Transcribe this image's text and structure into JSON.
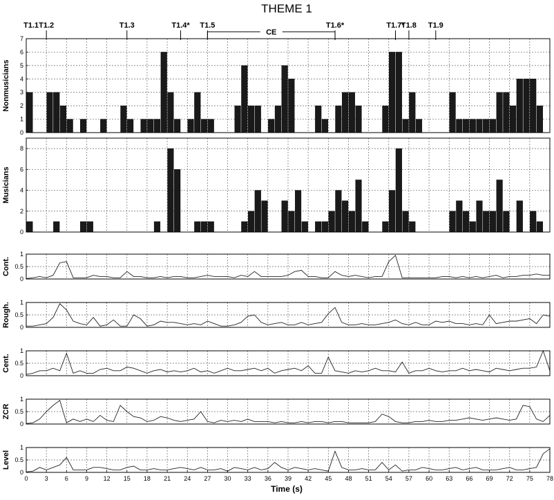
{
  "figure": {
    "title": "THEME 1",
    "xlabel": "Time (s)",
    "xticks": [
      0,
      3,
      6,
      9,
      12,
      15,
      18,
      21,
      24,
      27,
      30,
      33,
      36,
      39,
      42,
      45,
      48,
      51,
      54,
      57,
      60,
      63,
      66,
      69,
      72,
      75,
      78
    ],
    "markers": [
      {
        "label": "T1.1",
        "time": 0
      },
      {
        "label": "T1.2",
        "time": 3
      },
      {
        "label": "T1.3",
        "time": 15
      },
      {
        "label": "T1.4*",
        "time": 23
      },
      {
        "label": "T1.5",
        "time": 27
      },
      {
        "label": "T1.6*",
        "time": 46
      },
      {
        "label": "T1.7*",
        "time": 55
      },
      {
        "label": "T1.8",
        "time": 57
      },
      {
        "label": "T1.9",
        "time": 61
      }
    ],
    "ce_span": {
      "label": "CE",
      "start": 27,
      "end": 46
    }
  },
  "chart_data": [
    {
      "type": "bar",
      "ylabel": "Nonmusicians",
      "ylim": [
        0,
        7
      ],
      "yticks": [
        0,
        1,
        2,
        3,
        4,
        5,
        6,
        7
      ],
      "grid": true,
      "x": [
        0,
        1,
        2,
        3,
        4,
        5,
        6,
        7,
        8,
        9,
        10,
        11,
        12,
        13,
        14,
        15,
        16,
        17,
        18,
        19,
        20,
        21,
        22,
        23,
        24,
        25,
        26,
        27,
        28,
        29,
        30,
        31,
        32,
        33,
        34,
        35,
        36,
        37,
        38,
        39,
        40,
        41,
        42,
        43,
        44,
        45,
        46,
        47,
        48,
        49,
        50,
        51,
        52,
        53,
        54,
        55,
        56,
        57,
        58,
        59,
        60,
        61,
        62,
        63,
        64,
        65,
        66,
        67,
        68,
        69,
        70,
        71,
        72,
        73,
        74,
        75,
        76,
        77
      ],
      "values": [
        3,
        0,
        0,
        3,
        3,
        2,
        1,
        0,
        1,
        0,
        0,
        1,
        0,
        0,
        2,
        1,
        0,
        1,
        1,
        1,
        6,
        3,
        1,
        0,
        1,
        3,
        1,
        1,
        0,
        0,
        0,
        2,
        5,
        2,
        2,
        0,
        1,
        2,
        5,
        4,
        0,
        0,
        0,
        2,
        1,
        0,
        2,
        3,
        3,
        2,
        0,
        0,
        0,
        2,
        6,
        6,
        1,
        3,
        1,
        0,
        0,
        0,
        0,
        3,
        1,
        1,
        1,
        1,
        1,
        1,
        3,
        3,
        2,
        4,
        4,
        4,
        2,
        0
      ]
    },
    {
      "type": "bar",
      "ylabel": "Musicians",
      "ylim": [
        0,
        9
      ],
      "yticks": [
        0,
        2,
        4,
        6,
        8
      ],
      "grid": true,
      "x": [
        0,
        1,
        2,
        3,
        4,
        5,
        6,
        7,
        8,
        9,
        10,
        11,
        12,
        13,
        14,
        15,
        16,
        17,
        18,
        19,
        20,
        21,
        22,
        23,
        24,
        25,
        26,
        27,
        28,
        29,
        30,
        31,
        32,
        33,
        34,
        35,
        36,
        37,
        38,
        39,
        40,
        41,
        42,
        43,
        44,
        45,
        46,
        47,
        48,
        49,
        50,
        51,
        52,
        53,
        54,
        55,
        56,
        57,
        58,
        59,
        60,
        61,
        62,
        63,
        64,
        65,
        66,
        67,
        68,
        69,
        70,
        71,
        72,
        73,
        74,
        75,
        76,
        77
      ],
      "values": [
        1,
        0,
        0,
        0,
        1,
        0,
        0,
        0,
        1,
        1,
        0,
        0,
        0,
        0,
        0,
        0,
        0,
        0,
        0,
        1,
        0,
        8,
        6,
        0,
        0,
        1,
        1,
        1,
        0,
        0,
        0,
        0,
        1,
        2,
        4,
        3,
        0,
        0,
        3,
        2,
        4,
        1,
        0,
        1,
        1,
        2,
        4,
        3,
        2,
        5,
        1,
        0,
        0,
        1,
        4,
        8,
        2,
        1,
        0,
        0,
        0,
        0,
        0,
        2,
        3,
        2,
        1,
        3,
        2,
        2,
        5,
        2,
        0,
        3,
        0,
        2,
        1,
        0
      ]
    },
    {
      "type": "line",
      "ylabel": "Cont.",
      "ylim": [
        0,
        1
      ],
      "yticks": [
        0,
        0.5,
        1
      ],
      "grid": true,
      "x": [
        0,
        1,
        2,
        3,
        4,
        5,
        6,
        7,
        8,
        9,
        10,
        11,
        12,
        13,
        14,
        15,
        16,
        17,
        18,
        19,
        20,
        21,
        22,
        23,
        24,
        25,
        26,
        27,
        28,
        29,
        30,
        31,
        32,
        33,
        34,
        35,
        36,
        37,
        38,
        39,
        40,
        41,
        42,
        43,
        44,
        45,
        46,
        47,
        48,
        49,
        50,
        51,
        52,
        53,
        54,
        55,
        56,
        57,
        58,
        59,
        60,
        61,
        62,
        63,
        64,
        65,
        66,
        67,
        68,
        69,
        70,
        71,
        72,
        73,
        74,
        75,
        76,
        77,
        78
      ],
      "values": [
        0.02,
        0.05,
        0.1,
        0.05,
        0.15,
        0.65,
        0.7,
        0.05,
        0.05,
        0.05,
        0.15,
        0.1,
        0.1,
        0.05,
        0.05,
        0.3,
        0.1,
        0.1,
        0.05,
        0.05,
        0.1,
        0.05,
        0.1,
        0.1,
        0.05,
        0.05,
        0.1,
        0.15,
        0.1,
        0.1,
        0.1,
        0.05,
        0.15,
        0.1,
        0.3,
        0.1,
        0.1,
        0.1,
        0.1,
        0.15,
        0.3,
        0.35,
        0.1,
        0.1,
        0.05,
        0.05,
        0.3,
        0.15,
        0.1,
        0.15,
        0.1,
        0.05,
        0.1,
        0.1,
        0.7,
        0.95,
        0.05,
        0.05,
        0.05,
        0.05,
        0.05,
        0.05,
        0.1,
        0.1,
        0.05,
        0.1,
        0.05,
        0.1,
        0.05,
        0.1,
        0.15,
        0.05,
        0.1,
        0.1,
        0.15,
        0.15,
        0.2,
        0.15,
        0.15
      ]
    },
    {
      "type": "line",
      "ylabel": "Rough.",
      "ylim": [
        0,
        1
      ],
      "yticks": [
        0,
        0.5,
        1
      ],
      "grid": true,
      "x": [
        0,
        1,
        2,
        3,
        4,
        5,
        6,
        7,
        8,
        9,
        10,
        11,
        12,
        13,
        14,
        15,
        16,
        17,
        18,
        19,
        20,
        21,
        22,
        23,
        24,
        25,
        26,
        27,
        28,
        29,
        30,
        31,
        32,
        33,
        34,
        35,
        36,
        37,
        38,
        39,
        40,
        41,
        42,
        43,
        44,
        45,
        46,
        47,
        48,
        49,
        50,
        51,
        52,
        53,
        54,
        55,
        56,
        57,
        58,
        59,
        60,
        61,
        62,
        63,
        64,
        65,
        66,
        67,
        68,
        69,
        70,
        71,
        72,
        73,
        74,
        75,
        76,
        77,
        78
      ],
      "values": [
        0.05,
        0.05,
        0.1,
        0.15,
        0.4,
        0.95,
        0.7,
        0.25,
        0.15,
        0.1,
        0.4,
        0.05,
        0.1,
        0.3,
        0.05,
        0.05,
        0.5,
        0.35,
        0.05,
        0.1,
        0.25,
        0.2,
        0.2,
        0.15,
        0.1,
        0.15,
        0.1,
        0.25,
        0.15,
        0.05,
        0.05,
        0.1,
        0.2,
        0.45,
        0.5,
        0.2,
        0.1,
        0.15,
        0.2,
        0.1,
        0.1,
        0.2,
        0.1,
        0.15,
        0.2,
        0.55,
        0.8,
        0.2,
        0.1,
        0.1,
        0.15,
        0.1,
        0.1,
        0.15,
        0.2,
        0.3,
        0.15,
        0.1,
        0.2,
        0.1,
        0.1,
        0.25,
        0.2,
        0.25,
        0.15,
        0.15,
        0.1,
        0.15,
        0.1,
        0.5,
        0.15,
        0.2,
        0.25,
        0.25,
        0.3,
        0.35,
        0.15,
        0.5,
        0.45
      ]
    },
    {
      "type": "line",
      "ylabel": "Cent.",
      "ylim": [
        0,
        1
      ],
      "yticks": [
        0,
        0.5,
        1
      ],
      "grid": true,
      "x": [
        0,
        1,
        2,
        3,
        4,
        5,
        6,
        7,
        8,
        9,
        10,
        11,
        12,
        13,
        14,
        15,
        16,
        17,
        18,
        19,
        20,
        21,
        22,
        23,
        24,
        25,
        26,
        27,
        28,
        29,
        30,
        31,
        32,
        33,
        34,
        35,
        36,
        37,
        38,
        39,
        40,
        41,
        42,
        43,
        44,
        45,
        46,
        47,
        48,
        49,
        50,
        51,
        52,
        53,
        54,
        55,
        56,
        57,
        58,
        59,
        60,
        61,
        62,
        63,
        64,
        65,
        66,
        67,
        68,
        69,
        70,
        71,
        72,
        73,
        74,
        75,
        76,
        77,
        78
      ],
      "values": [
        0.05,
        0.1,
        0.2,
        0.2,
        0.3,
        0.2,
        0.9,
        0.1,
        0.2,
        0.1,
        0.1,
        0.25,
        0.3,
        0.2,
        0.2,
        0.35,
        0.3,
        0.2,
        0.1,
        0.2,
        0.25,
        0.15,
        0.2,
        0.15,
        0.2,
        0.3,
        0.15,
        0.2,
        0.1,
        0.2,
        0.3,
        0.2,
        0.2,
        0.25,
        0.3,
        0.2,
        0.3,
        0.1,
        0.2,
        0.25,
        0.3,
        0.2,
        0.4,
        0.1,
        0.1,
        0.75,
        0.2,
        0.15,
        0.1,
        0.2,
        0.15,
        0.2,
        0.3,
        0.2,
        0.2,
        0.15,
        0.55,
        0.1,
        0.2,
        0.2,
        0.3,
        0.2,
        0.15,
        0.2,
        0.2,
        0.3,
        0.2,
        0.25,
        0.2,
        0.15,
        0.3,
        0.25,
        0.2,
        0.25,
        0.3,
        0.3,
        0.35,
        1.0,
        0.2
      ]
    },
    {
      "type": "line",
      "ylabel": "ZCR",
      "ylim": [
        0,
        1
      ],
      "yticks": [
        0,
        0.5,
        1
      ],
      "grid": true,
      "x": [
        0,
        1,
        2,
        3,
        4,
        5,
        6,
        7,
        8,
        9,
        10,
        11,
        12,
        13,
        14,
        15,
        16,
        17,
        18,
        19,
        20,
        21,
        22,
        23,
        24,
        25,
        26,
        27,
        28,
        29,
        30,
        31,
        32,
        33,
        34,
        35,
        36,
        37,
        38,
        39,
        40,
        41,
        42,
        43,
        44,
        45,
        46,
        47,
        48,
        49,
        50,
        51,
        52,
        53,
        54,
        55,
        56,
        57,
        58,
        59,
        60,
        61,
        62,
        63,
        64,
        65,
        66,
        67,
        68,
        69,
        70,
        71,
        72,
        73,
        74,
        75,
        76,
        77,
        78
      ],
      "values": [
        0.02,
        0.05,
        0.2,
        0.5,
        0.75,
        0.95,
        0.05,
        0.2,
        0.1,
        0.2,
        0.1,
        0.35,
        0.15,
        0.1,
        0.75,
        0.5,
        0.3,
        0.25,
        0.1,
        0.15,
        0.3,
        0.25,
        0.15,
        0.1,
        0.15,
        0.2,
        0.5,
        0.1,
        0.05,
        0.15,
        0.1,
        0.15,
        0.1,
        0.2,
        0.1,
        0.1,
        0.1,
        0.05,
        0.1,
        0.05,
        0.05,
        0.1,
        0.05,
        0.1,
        0.1,
        0.05,
        0.1,
        0.1,
        0.05,
        0.05,
        0.05,
        0.05,
        0.1,
        0.4,
        0.3,
        0.1,
        0.05,
        0.05,
        0.1,
        0.1,
        0.15,
        0.1,
        0.1,
        0.15,
        0.15,
        0.2,
        0.25,
        0.2,
        0.15,
        0.2,
        0.25,
        0.2,
        0.15,
        0.2,
        0.75,
        0.7,
        0.2,
        0.1,
        0.35
      ]
    },
    {
      "type": "line",
      "ylabel": "Level",
      "ylim": [
        0,
        1
      ],
      "yticks": [
        0,
        0.5,
        1
      ],
      "grid": true,
      "x": [
        0,
        1,
        2,
        3,
        4,
        5,
        6,
        7,
        8,
        9,
        10,
        11,
        12,
        13,
        14,
        15,
        16,
        17,
        18,
        19,
        20,
        21,
        22,
        23,
        24,
        25,
        26,
        27,
        28,
        29,
        30,
        31,
        32,
        33,
        34,
        35,
        36,
        37,
        38,
        39,
        40,
        41,
        42,
        43,
        44,
        45,
        46,
        47,
        48,
        49,
        50,
        51,
        52,
        53,
        54,
        55,
        56,
        57,
        58,
        59,
        60,
        61,
        62,
        63,
        64,
        65,
        66,
        67,
        68,
        69,
        70,
        71,
        72,
        73,
        74,
        75,
        76,
        77,
        78
      ],
      "values": [
        0.02,
        0.05,
        0.2,
        0.1,
        0.2,
        0.3,
        0.6,
        0.1,
        0.1,
        0.1,
        0.2,
        0.2,
        0.15,
        0.1,
        0.1,
        0.2,
        0.25,
        0.1,
        0.1,
        0.15,
        0.1,
        0.1,
        0.15,
        0.2,
        0.15,
        0.1,
        0.2,
        0.1,
        0.1,
        0.15,
        0.05,
        0.2,
        0.15,
        0.1,
        0.2,
        0.1,
        0.15,
        0.4,
        0.2,
        0.1,
        0.2,
        0.15,
        0.1,
        0.15,
        0.1,
        0.05,
        0.85,
        0.2,
        0.1,
        0.1,
        0.15,
        0.1,
        0.1,
        0.4,
        0.1,
        0.3,
        0.05,
        0.1,
        0.1,
        0.2,
        0.15,
        0.1,
        0.1,
        0.15,
        0.2,
        0.1,
        0.15,
        0.2,
        0.1,
        0.1,
        0.1,
        0.15,
        0.2,
        0.1,
        0.1,
        0.15,
        0.2,
        0.75,
        0.95
      ]
    }
  ]
}
